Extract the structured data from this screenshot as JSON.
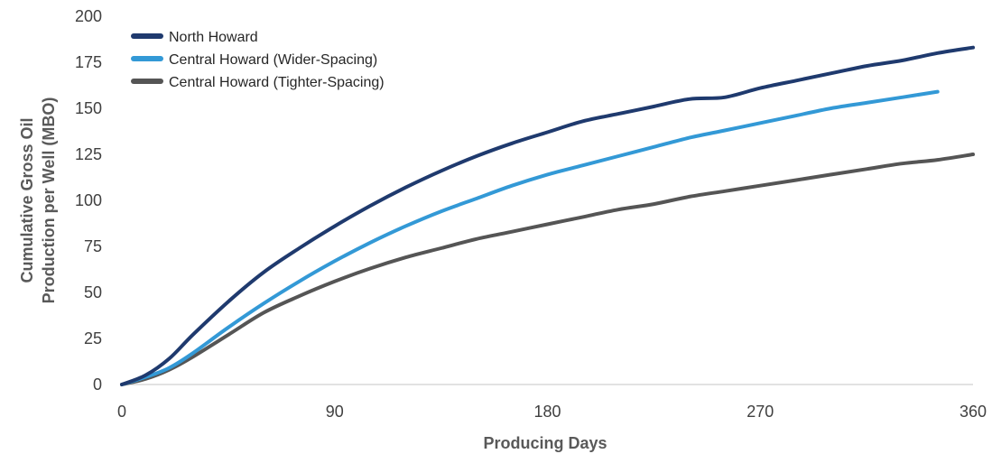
{
  "chart_data": {
    "type": "line",
    "title": "",
    "xlabel": "Producing Days",
    "ylabel_lines": [
      "Cumulative Gross Oil",
      "Production per Well (MBO)"
    ],
    "xlim": [
      0,
      360
    ],
    "ylim": [
      0,
      200
    ],
    "x_ticks": [
      0,
      90,
      180,
      270,
      360
    ],
    "y_ticks": [
      0,
      25,
      50,
      75,
      100,
      125,
      150,
      175,
      200
    ],
    "grid": false,
    "legend_position": "top-left",
    "series": [
      {
        "name": "North Howard",
        "color": "#1f3a6e",
        "points": [
          [
            0,
            0
          ],
          [
            10,
            5
          ],
          [
            20,
            14
          ],
          [
            30,
            27
          ],
          [
            45,
            45
          ],
          [
            60,
            61
          ],
          [
            75,
            74
          ],
          [
            90,
            86
          ],
          [
            105,
            97
          ],
          [
            120,
            107
          ],
          [
            135,
            116
          ],
          [
            150,
            124
          ],
          [
            165,
            131
          ],
          [
            180,
            137
          ],
          [
            195,
            143
          ],
          [
            210,
            147
          ],
          [
            225,
            151
          ],
          [
            240,
            155
          ],
          [
            255,
            156
          ],
          [
            270,
            161
          ],
          [
            285,
            165
          ],
          [
            300,
            169
          ],
          [
            315,
            173
          ],
          [
            330,
            176
          ],
          [
            345,
            180
          ],
          [
            360,
            183
          ]
        ]
      },
      {
        "name": "Central Howard (Wider-Spacing)",
        "color": "#3399d6",
        "points": [
          [
            0,
            0
          ],
          [
            10,
            4
          ],
          [
            20,
            9
          ],
          [
            30,
            17
          ],
          [
            45,
            31
          ],
          [
            60,
            44
          ],
          [
            75,
            56
          ],
          [
            90,
            67
          ],
          [
            105,
            77
          ],
          [
            120,
            86
          ],
          [
            135,
            94
          ],
          [
            150,
            101
          ],
          [
            165,
            108
          ],
          [
            180,
            114
          ],
          [
            195,
            119
          ],
          [
            210,
            124
          ],
          [
            225,
            129
          ],
          [
            240,
            134
          ],
          [
            255,
            138
          ],
          [
            270,
            142
          ],
          [
            285,
            146
          ],
          [
            300,
            150
          ],
          [
            315,
            153
          ],
          [
            330,
            156
          ],
          [
            345,
            159
          ]
        ]
      },
      {
        "name": "Central Howard (Tighter-Spacing)",
        "color": "#555555",
        "points": [
          [
            0,
            0
          ],
          [
            10,
            3
          ],
          [
            20,
            8
          ],
          [
            30,
            15
          ],
          [
            45,
            27
          ],
          [
            60,
            39
          ],
          [
            75,
            48
          ],
          [
            90,
            56
          ],
          [
            105,
            63
          ],
          [
            120,
            69
          ],
          [
            135,
            74
          ],
          [
            150,
            79
          ],
          [
            165,
            83
          ],
          [
            180,
            87
          ],
          [
            195,
            91
          ],
          [
            210,
            95
          ],
          [
            225,
            98
          ],
          [
            240,
            102
          ],
          [
            255,
            105
          ],
          [
            270,
            108
          ],
          [
            285,
            111
          ],
          [
            300,
            114
          ],
          [
            315,
            117
          ],
          [
            330,
            120
          ],
          [
            345,
            122
          ],
          [
            360,
            125
          ]
        ]
      }
    ]
  }
}
